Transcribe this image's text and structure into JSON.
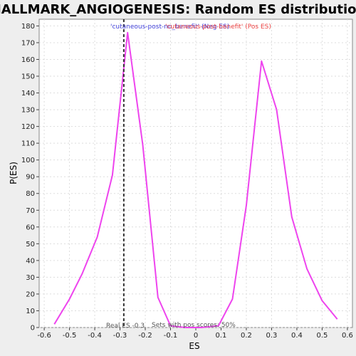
{
  "chart_data": {
    "type": "line",
    "title": "HALLMARK_ANGIOGENESIS: Random ES distribution",
    "xlabel": "ES",
    "ylabel": "P(ES)",
    "xlim": [
      -0.62,
      0.62
    ],
    "ylim": [
      0,
      184
    ],
    "xticks": [
      -0.6,
      -0.5,
      -0.4,
      -0.3,
      -0.2,
      -0.1,
      0.0,
      0.1,
      0.2,
      0.3,
      0.4,
      0.5,
      0.6
    ],
    "xtick_labels": [
      "-0.6",
      "-0.5",
      "-0.4",
      "-0.3",
      "-0.2",
      "-0.1",
      "0",
      "0.1",
      "0.2",
      "0.3",
      "0.4",
      "0.5",
      "0.6"
    ],
    "yticks": [
      0,
      10,
      20,
      30,
      40,
      50,
      60,
      70,
      80,
      90,
      100,
      110,
      120,
      130,
      140,
      150,
      160,
      170,
      180
    ],
    "grid": true,
    "series": [
      {
        "color": "#ee44ee",
        "x": [
          -0.56,
          -0.5,
          -0.45,
          -0.39,
          -0.33,
          -0.27,
          -0.21,
          -0.15,
          -0.1,
          -0.04,
          0.02,
          0.09,
          0.145,
          0.2,
          0.26,
          0.32,
          0.38,
          0.44,
          0.5,
          0.56
        ],
        "y": [
          2,
          17,
          32,
          54,
          91,
          176,
          109,
          18,
          1,
          0,
          0,
          1,
          17,
          73,
          159,
          130,
          66,
          35,
          16,
          5
        ]
      }
    ],
    "real_es": -0.285,
    "annotations": {
      "neg_label": "'cutaneous-post-no_benefit' (Neg ES)",
      "pos_label": "'cutaneous-post-benefit' (Pos ES)",
      "neg_color": "#4444dd",
      "pos_color": "#ee4444",
      "real_es_label": "Real ES -0.3",
      "pos_scores_label": "Sets with pos scores: 50%"
    }
  }
}
